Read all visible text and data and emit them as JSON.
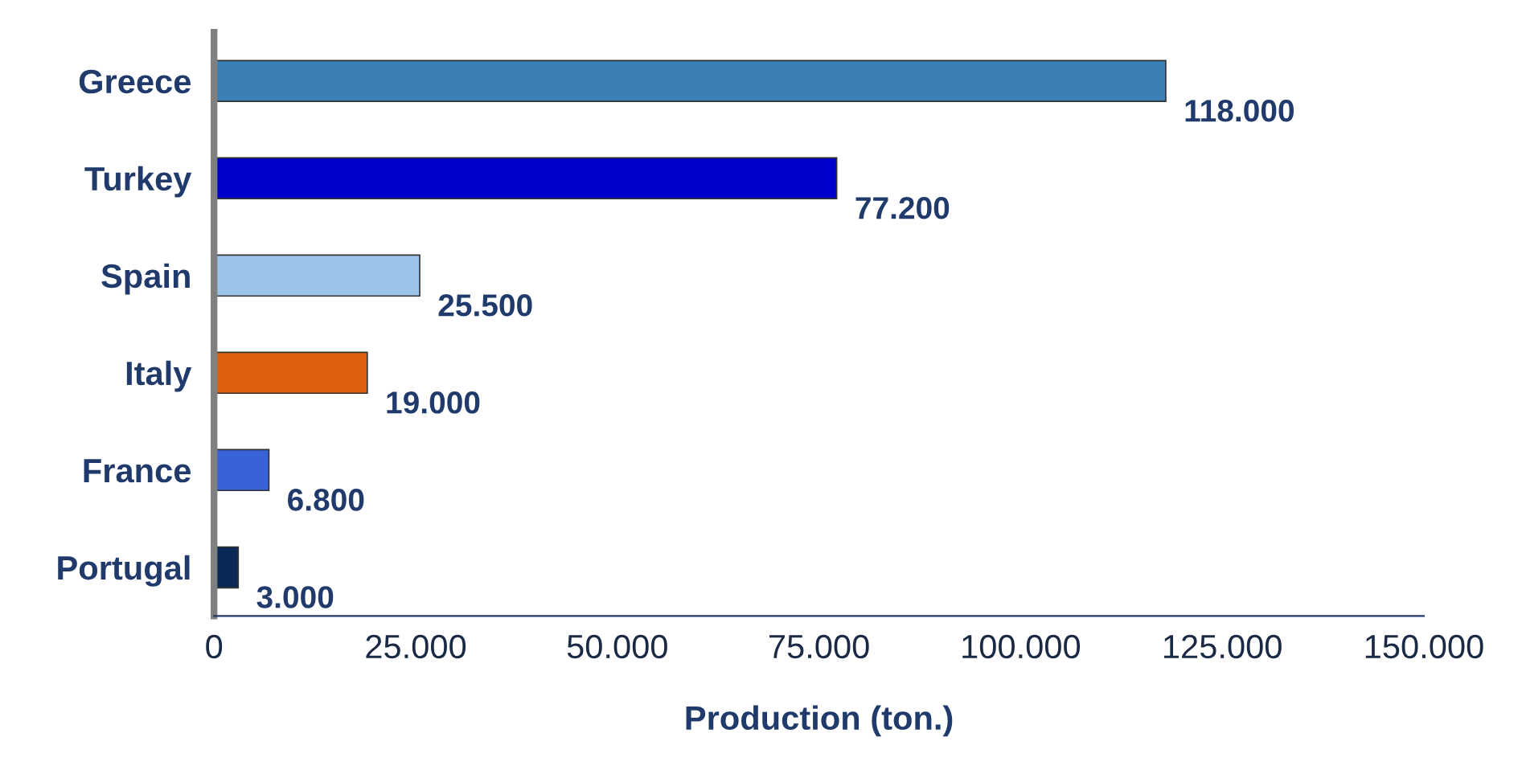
{
  "chart_data": {
    "type": "bar",
    "orientation": "horizontal",
    "categories": [
      "Greece",
      "Turkey",
      "Spain",
      "Italy",
      "France",
      "Portugal"
    ],
    "values": [
      118000,
      77200,
      25500,
      19000,
      6800,
      3000
    ],
    "colors": [
      "#3a7fb5",
      "#0000cc",
      "#9cc3ea",
      "#e0600f",
      "#3a62d8",
      "#0a2a55"
    ],
    "value_labels": [
      "118.000",
      "77.200",
      "25.500",
      "19.000",
      "6.800",
      "3.000"
    ],
    "xlabel": "Production (ton.)",
    "xlim": [
      0,
      150000
    ],
    "xticks": [
      0,
      {
        "value": 25000,
        "label": "25.000"
      },
      {
        "value": 50000,
        "label": "50.000"
      },
      {
        "value": 75000,
        "label": "75.000"
      },
      {
        "value": 100000,
        "label": "100.000"
      },
      {
        "value": 125000,
        "label": "125.000"
      },
      {
        "value": 150000,
        "label": "150.000"
      }
    ],
    "grid": false,
    "legend": false
  }
}
